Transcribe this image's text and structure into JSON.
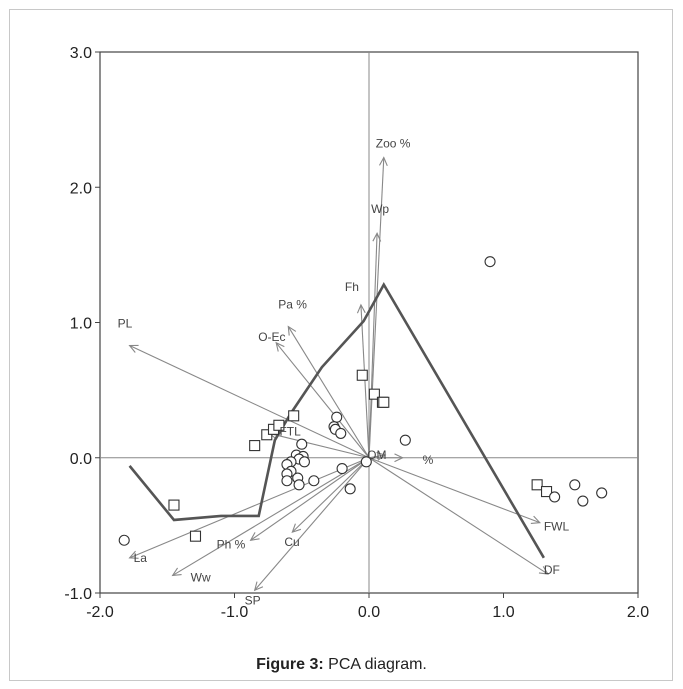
{
  "caption": {
    "label": "Figure 3:",
    "text": " PCA diagram."
  },
  "chart_data": {
    "type": "scatter",
    "title": "",
    "xlabel": "",
    "ylabel": "",
    "xlim": [
      -2.0,
      2.0
    ],
    "ylim": [
      -1.0,
      3.0
    ],
    "xticks": [
      -2.0,
      -1.0,
      0.0,
      1.0,
      2.0
    ],
    "yticks": [
      -1.0,
      0.0,
      1.0,
      2.0,
      3.0
    ],
    "xtick_labels": [
      "-2.0",
      "-1.0",
      "0.0",
      "1.0",
      "2.0"
    ],
    "ytick_labels": [
      "-1.0",
      "0.0",
      "1.0",
      "2.0",
      "3.0"
    ],
    "colors": {
      "arrows": "#888888",
      "polygon": "#555555",
      "markers": "#333333",
      "axes": "#444444"
    },
    "vectors": [
      {
        "label": "Zoo %",
        "x": 0.11,
        "y": 2.22
      },
      {
        "label": "Wp",
        "x": 0.06,
        "y": 1.66
      },
      {
        "label": "Fh",
        "x": -0.06,
        "y": 1.13
      },
      {
        "label": "Pa %",
        "x": -0.6,
        "y": 0.97
      },
      {
        "label": "O-Ec",
        "x": -0.69,
        "y": 0.85
      },
      {
        "label": "PL",
        "x": -1.78,
        "y": 0.83
      },
      {
        "label": "FTL",
        "x": -0.74,
        "y": 0.18
      },
      {
        "label": "OM",
        "x": 0.12,
        "y": 0.02
      },
      {
        "label": "%",
        "x": 0.25,
        "y": 0.0
      },
      {
        "label": "Cu",
        "x": -0.57,
        "y": -0.55
      },
      {
        "label": "Ph %",
        "x": -0.88,
        "y": -0.61
      },
      {
        "label": "Ww",
        "x": -1.46,
        "y": -0.87
      },
      {
        "label": "La",
        "x": -1.78,
        "y": -0.74
      },
      {
        "label": "SP",
        "x": -0.85,
        "y": -0.98
      },
      {
        "label": "FWL",
        "x": 1.27,
        "y": -0.48
      },
      {
        "label": "DF",
        "x": 1.33,
        "y": -0.86
      }
    ],
    "series": [
      {
        "marker": "square",
        "points": [
          [
            -1.29,
            -0.58
          ],
          [
            -1.45,
            -0.35
          ],
          [
            -0.85,
            0.09
          ],
          [
            -0.76,
            0.17
          ],
          [
            -0.71,
            0.21
          ],
          [
            -0.67,
            0.24
          ],
          [
            -0.56,
            0.31
          ],
          [
            -0.05,
            0.61
          ],
          [
            0.04,
            0.47
          ],
          [
            0.1,
            0.41
          ],
          [
            0.11,
            0.41
          ],
          [
            1.25,
            -0.2
          ],
          [
            1.32,
            -0.25
          ]
        ]
      },
      {
        "marker": "circle",
        "points": [
          [
            0.9,
            1.45
          ],
          [
            -1.82,
            -0.61
          ],
          [
            -0.24,
            0.3
          ],
          [
            -0.26,
            0.23
          ],
          [
            -0.25,
            0.21
          ],
          [
            -0.21,
            0.18
          ],
          [
            -0.5,
            0.1
          ],
          [
            -0.54,
            0.02
          ],
          [
            -0.49,
            0.01
          ],
          [
            -0.52,
            -0.01
          ],
          [
            -0.48,
            -0.03
          ],
          [
            -0.58,
            -0.03
          ],
          [
            -0.61,
            -0.05
          ],
          [
            -0.58,
            -0.1
          ],
          [
            -0.61,
            -0.12
          ],
          [
            -0.53,
            -0.15
          ],
          [
            -0.52,
            -0.2
          ],
          [
            -0.61,
            -0.17
          ],
          [
            -0.41,
            -0.17
          ],
          [
            -0.14,
            -0.23
          ],
          [
            -0.2,
            -0.08
          ],
          [
            0.27,
            0.13
          ],
          [
            -0.02,
            -0.03
          ],
          [
            1.53,
            -0.2
          ],
          [
            1.59,
            -0.32
          ],
          [
            1.73,
            -0.26
          ],
          [
            1.38,
            -0.29
          ]
        ]
      }
    ],
    "polygon": [
      [
        -1.78,
        -0.06
      ],
      [
        -1.45,
        -0.46
      ],
      [
        -1.1,
        -0.43
      ],
      [
        -0.82,
        -0.43
      ],
      [
        -0.7,
        0.13
      ],
      [
        -0.58,
        0.33
      ],
      [
        -0.35,
        0.67
      ],
      [
        -0.04,
        1.01
      ],
      [
        0.11,
        1.28
      ],
      [
        1.3,
        -0.74
      ]
    ]
  }
}
